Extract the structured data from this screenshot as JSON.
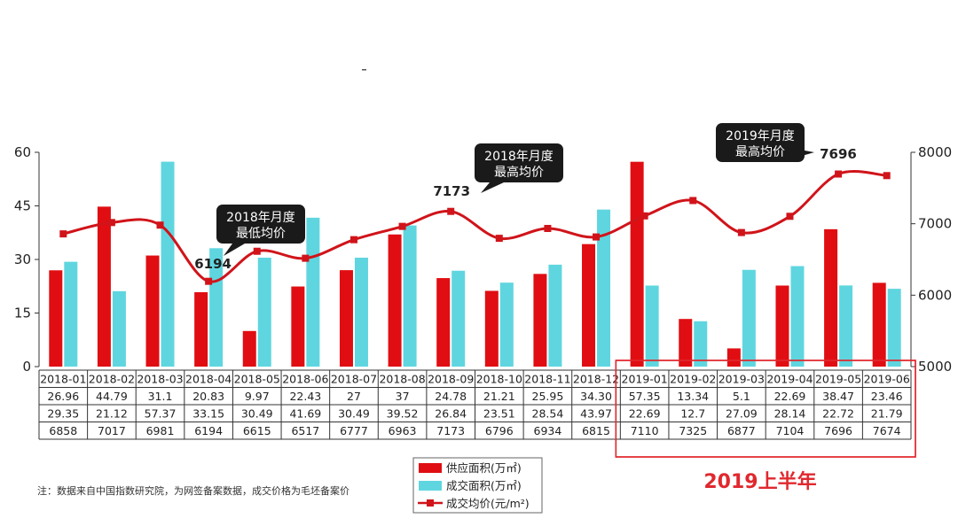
{
  "chart_data": {
    "type": "bar",
    "categories": [
      "2018-01",
      "2018-02",
      "2018-03",
      "2018-04",
      "2018-05",
      "2018-06",
      "2018-07",
      "2018-08",
      "2018-09",
      "2018-10",
      "2018-11",
      "2018-12",
      "2019-01",
      "2019-02",
      "2019-03",
      "2019-04",
      "2019-05",
      "2019-06"
    ],
    "series": [
      {
        "name": "供应面积(万㎡)",
        "kind": "bar",
        "axis": "left",
        "color": "#e00e12",
        "values": [
          26.96,
          44.79,
          31.1,
          20.83,
          9.97,
          22.43,
          27,
          37,
          24.78,
          21.21,
          25.95,
          34.3,
          57.35,
          13.34,
          5.1,
          22.69,
          38.47,
          23.46
        ],
        "labels": [
          "26.96",
          "44.79",
          "31.1",
          "20.83",
          "9.97",
          "22.43",
          "27",
          "37",
          "24.78",
          "21.21",
          "25.95",
          "34.30",
          "57.35",
          "13.34",
          "5.1",
          "22.69",
          "38.47",
          "23.46"
        ]
      },
      {
        "name": "成交面积(万㎡)",
        "kind": "bar",
        "axis": "left",
        "color": "#5fd6df",
        "values": [
          29.35,
          21.12,
          57.37,
          33.15,
          30.49,
          41.69,
          30.49,
          39.52,
          26.84,
          23.51,
          28.54,
          43.97,
          22.69,
          12.7,
          27.09,
          28.14,
          22.72,
          21.79
        ],
        "labels": [
          "29.35",
          "21.12",
          "57.37",
          "33.15",
          "30.49",
          "41.69",
          "30.49",
          "39.52",
          "26.84",
          "23.51",
          "28.54",
          "43.97",
          "22.69",
          "12.7",
          "27.09",
          "28.14",
          "22.72",
          "21.79"
        ]
      },
      {
        "name": "成交均价(元/m²)",
        "kind": "line",
        "axis": "right",
        "color": "#d0141a",
        "values": [
          6858,
          7017,
          6981,
          6194,
          6615,
          6517,
          6777,
          6963,
          7173,
          6796,
          6934,
          6815,
          7110,
          7325,
          6877,
          7104,
          7696,
          7674
        ],
        "labels": [
          "6858",
          "7017",
          "6981",
          "6194",
          "6615",
          "6517",
          "6777",
          "6963",
          "7173",
          "6796",
          "6934",
          "6815",
          "7110",
          "7325",
          "6877",
          "7104",
          "7696",
          "7674"
        ]
      }
    ],
    "ylim_left": [
      0,
      60
    ],
    "yticks_left": [
      "0",
      "15",
      "30",
      "45",
      "60"
    ],
    "ylim_right": [
      5000,
      8000
    ],
    "yticks_right": [
      "5000",
      "6000",
      "7000",
      "8000"
    ],
    "grid": false,
    "legend_position": "bottom-center",
    "annotations": [
      {
        "line1": "2018年月度",
        "line2": "最低均价",
        "value": "6194",
        "index": 3
      },
      {
        "line1": "2018年月度",
        "line2": "最高均价",
        "value": "7173",
        "index": 8
      },
      {
        "line1": "2019年月度",
        "line2": "最高均价",
        "value": "7696",
        "index": 16
      }
    ],
    "highlight_label": "2019上半年",
    "footnote": "注：数据来自中国指数研究院，为网签备案数据，成交价格为毛坯备案价"
  },
  "colors": {
    "supply": "#e00e12",
    "deal": "#5fd6df",
    "price": "#d0141a",
    "highlight": "#e0282e"
  }
}
